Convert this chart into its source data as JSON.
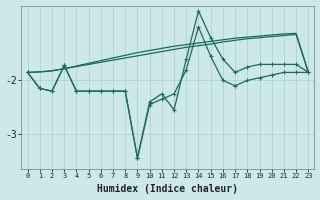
{
  "xlabel": "Humidex (Indice chaleur)",
  "bg_color": "#cce8e8",
  "grid_color": "#aacfcf",
  "line_color": "#1a6b5a",
  "x_values": [
    0,
    1,
    2,
    3,
    4,
    5,
    6,
    7,
    8,
    9,
    10,
    11,
    12,
    13,
    14,
    15,
    16,
    17,
    18,
    19,
    20,
    21,
    22,
    23
  ],
  "series_zigzag1": [
    -1.85,
    -2.15,
    -2.2,
    -1.72,
    -2.2,
    -2.2,
    -2.2,
    -2.2,
    -2.2,
    -3.45,
    -2.45,
    -2.35,
    -2.25,
    -1.8,
    -1.0,
    -1.55,
    -2.0,
    -2.1,
    -2.0,
    -1.95,
    -1.9,
    -1.85,
    -1.85,
    -1.85
  ],
  "series_zigzag2": [
    -1.85,
    -2.15,
    -2.2,
    -1.72,
    -2.2,
    -2.2,
    -2.2,
    -2.2,
    -2.2,
    -3.45,
    -2.4,
    -2.25,
    -2.55,
    -1.6,
    -0.7,
    -1.2,
    -1.6,
    -1.85,
    -1.75,
    -1.7,
    -1.7,
    -1.7,
    -1.7,
    -1.85
  ],
  "series_trend1": [
    -1.85,
    -1.84,
    -1.82,
    -1.78,
    -1.74,
    -1.7,
    -1.66,
    -1.62,
    -1.58,
    -1.54,
    -1.5,
    -1.46,
    -1.42,
    -1.38,
    -1.35,
    -1.32,
    -1.28,
    -1.25,
    -1.22,
    -1.2,
    -1.18,
    -1.16,
    -1.14,
    -1.85
  ],
  "series_trend2": [
    -1.85,
    -1.84,
    -1.82,
    -1.78,
    -1.73,
    -1.68,
    -1.63,
    -1.58,
    -1.53,
    -1.48,
    -1.44,
    -1.4,
    -1.36,
    -1.33,
    -1.3,
    -1.27,
    -1.24,
    -1.21,
    -1.19,
    -1.17,
    -1.15,
    -1.13,
    -1.12,
    -1.85
  ],
  "ylim": [
    -3.65,
    -0.6
  ],
  "yticks": [
    -3.0,
    -2.0
  ],
  "xlim": [
    -0.5,
    23.5
  ]
}
